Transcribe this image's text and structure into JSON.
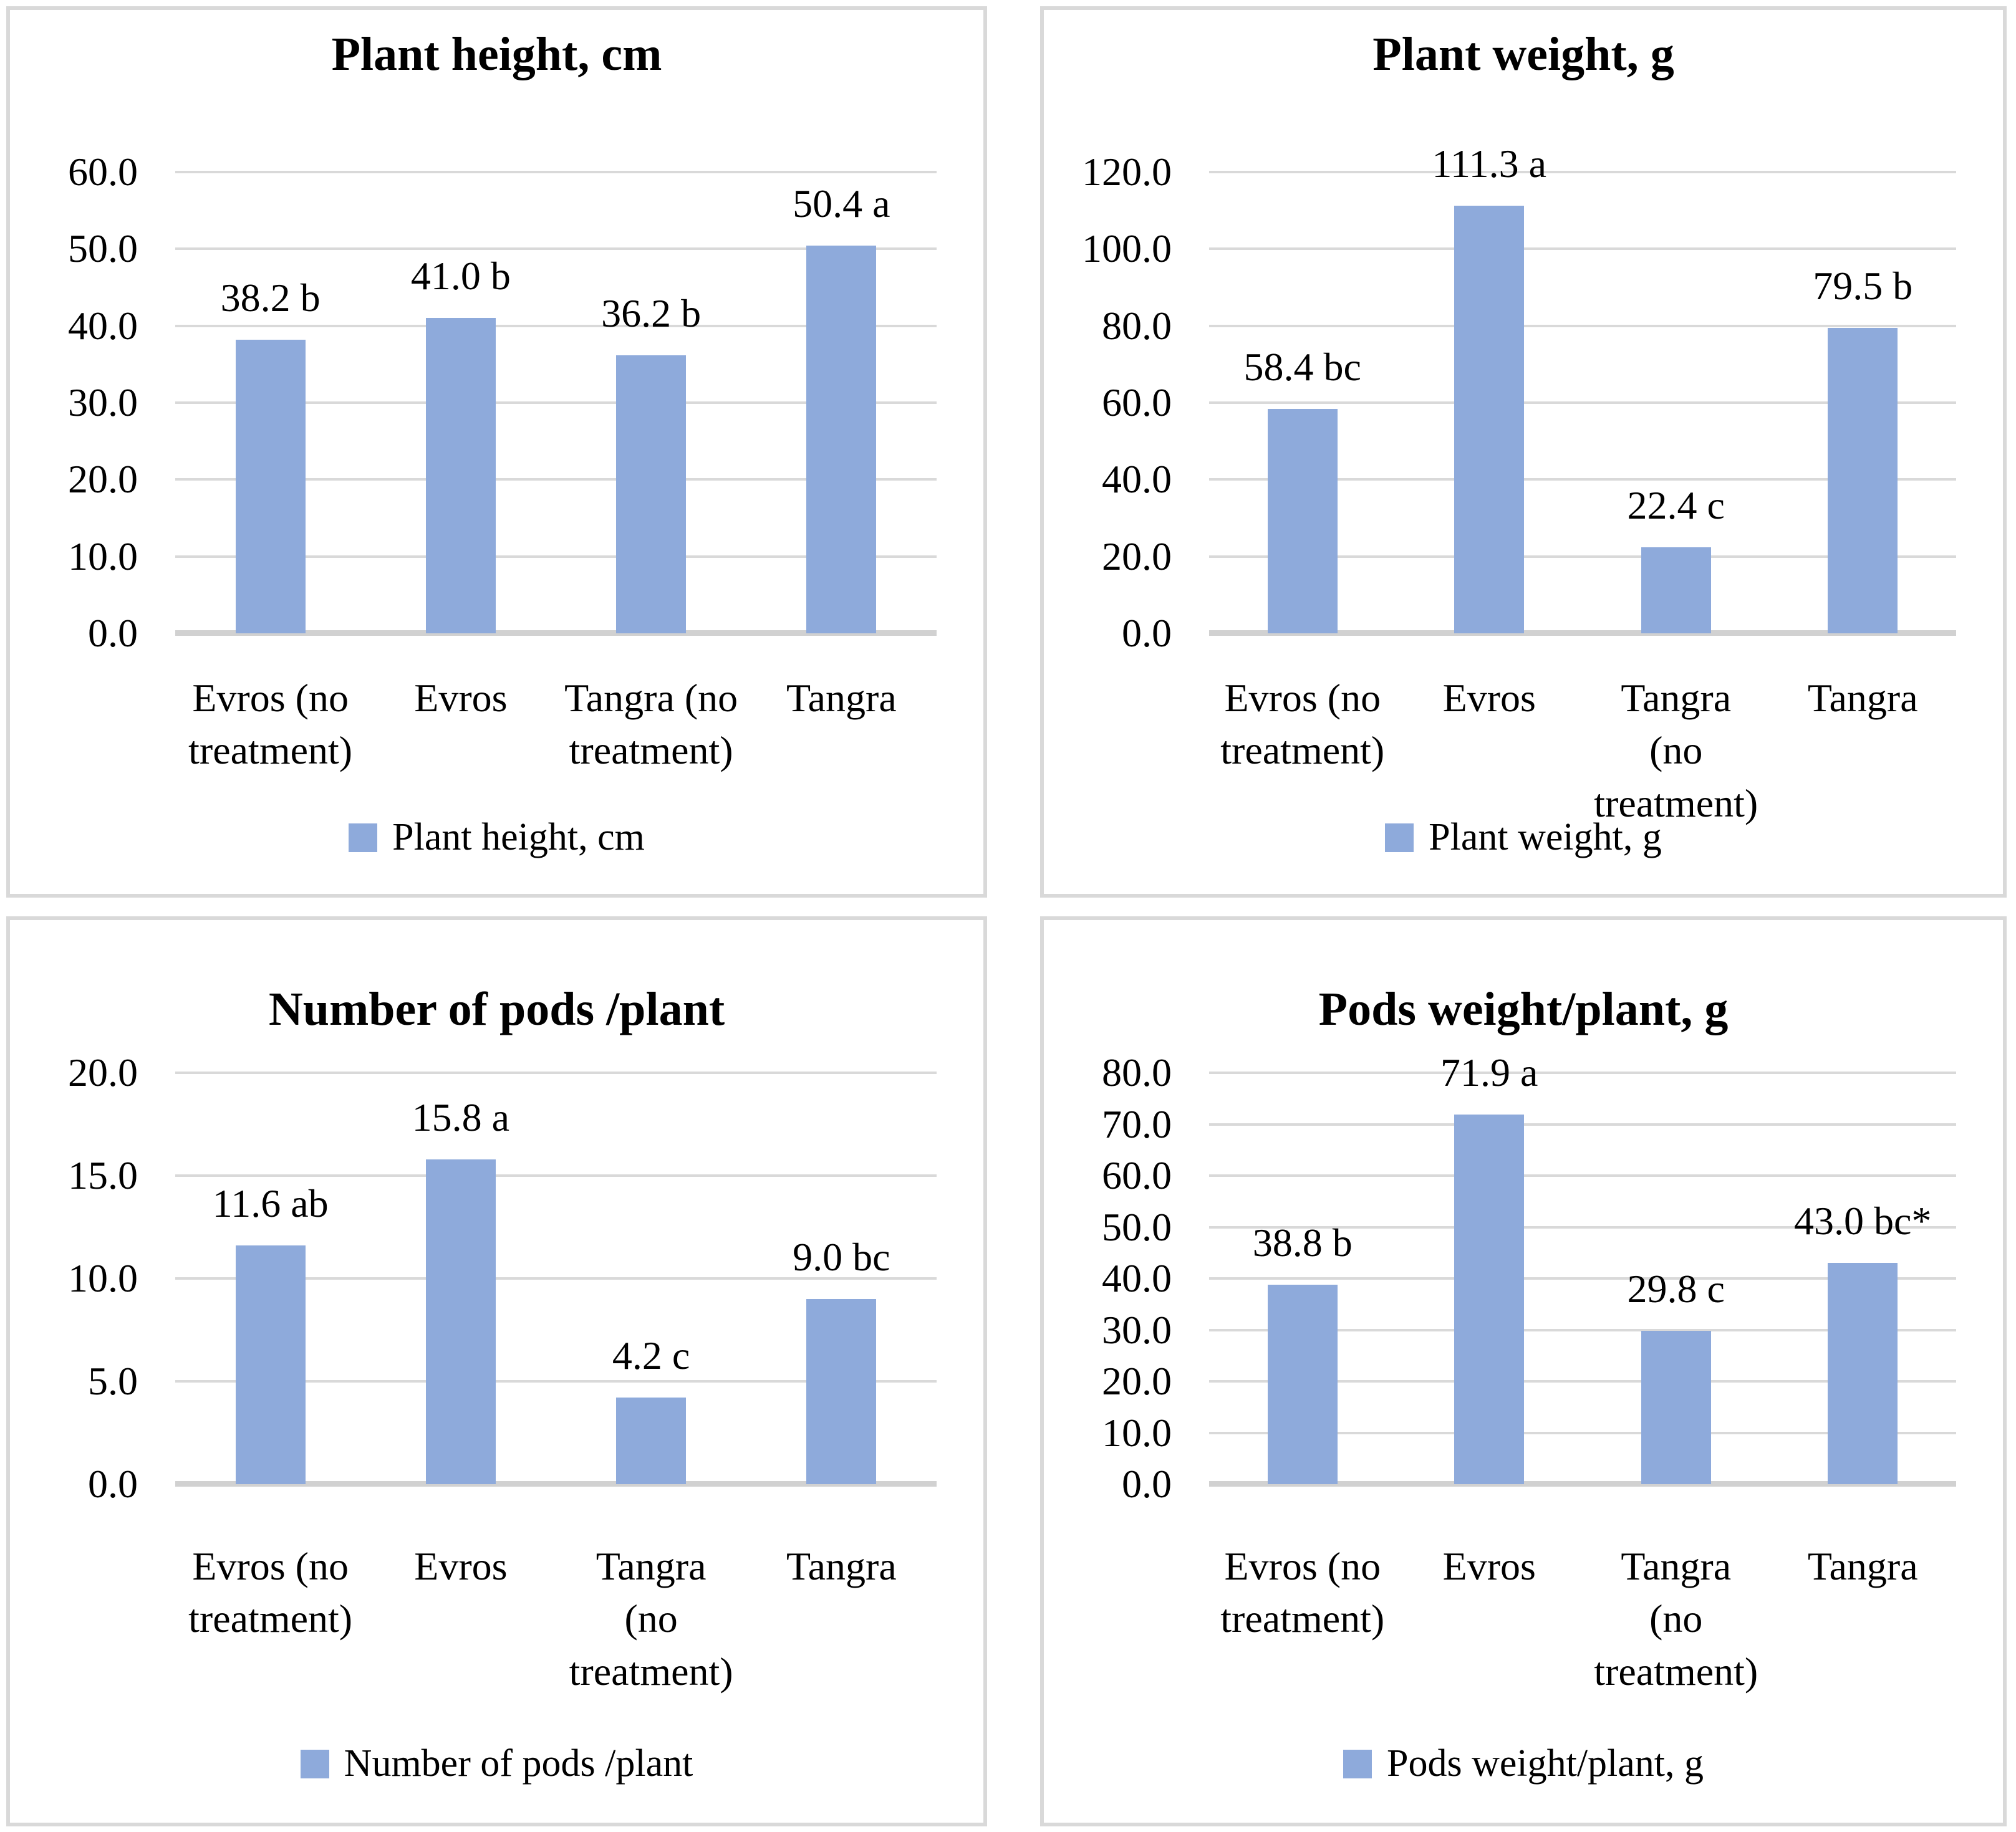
{
  "page": {
    "background": "#FFFFFF",
    "panel_border_color": "#D9D9D9"
  },
  "colors": {
    "bar": "#8EAADB",
    "gridline": "#D9D9D9",
    "axis_line": "#D1D1D1",
    "text": "#000000"
  },
  "chart_data": [
    {
      "id": "plant-height",
      "type": "bar",
      "title": "Plant height, cm",
      "legend": "Plant height, cm",
      "legend_position": "bottom",
      "grid": true,
      "categories": [
        "Evros (no treatment)",
        "Evros",
        "Tangra (no treatment)",
        "Tangra"
      ],
      "category_lines": [
        [
          "Evros (no",
          "treatment)"
        ],
        [
          "Evros"
        ],
        [
          "Tangra (no",
          "treatment)"
        ],
        [
          "Tangra"
        ]
      ],
      "values": [
        38.2,
        41.0,
        36.2,
        50.4
      ],
      "value_labels": [
        "38.2 b",
        "41.0 b",
        "36.2 b",
        "50.4 a"
      ],
      "ylim": [
        0,
        60
      ],
      "ystep": 10,
      "yticks": [
        "60.0",
        "50.0",
        "40.0",
        "30.0",
        "20.0",
        "10.0",
        "0.0"
      ],
      "bar_color": "#8EAADB"
    },
    {
      "id": "plant-weight",
      "type": "bar",
      "title": "Plant weight, g",
      "legend": "Plant weight, g",
      "legend_position": "bottom",
      "grid": true,
      "categories": [
        "Evros (no treatment)",
        "Evros",
        "Tangra (no treatment)",
        "Tangra"
      ],
      "category_lines": [
        [
          "Evros (no",
          "treatment)"
        ],
        [
          "Evros"
        ],
        [
          "Tangra",
          "(no",
          "treatment)"
        ],
        [
          "Tangra"
        ]
      ],
      "values": [
        58.4,
        111.3,
        22.4,
        79.5
      ],
      "value_labels": [
        "58.4 bc",
        "111.3 a",
        "22.4 c",
        "79.5 b"
      ],
      "ylim": [
        0,
        120
      ],
      "ystep": 20,
      "yticks": [
        "120.0",
        "100.0",
        "80.0",
        "60.0",
        "40.0",
        "20.0",
        "0.0"
      ],
      "bar_color": "#8EAADB"
    },
    {
      "id": "pods-number",
      "type": "bar",
      "title": "Number of pods /plant",
      "legend": "Number of pods /plant",
      "legend_position": "bottom",
      "grid": true,
      "categories": [
        "Evros (no treatment)",
        "Evros",
        "Tangra (no treatment)",
        "Tangra"
      ],
      "category_lines": [
        [
          "Evros (no",
          "treatment)"
        ],
        [
          "Evros"
        ],
        [
          "Tangra",
          "(no",
          "treatment)"
        ],
        [
          "Tangra"
        ]
      ],
      "values": [
        11.6,
        15.8,
        4.2,
        9.0
      ],
      "value_labels": [
        "11.6 ab",
        "15.8 a",
        "4.2 c",
        "9.0 bc"
      ],
      "ylim": [
        0,
        20
      ],
      "ystep": 5,
      "yticks": [
        "20.0",
        "15.0",
        "10.0",
        "5.0",
        "0.0"
      ],
      "bar_color": "#8EAADB"
    },
    {
      "id": "pods-weight",
      "type": "bar",
      "title": "Pods weight/plant, g",
      "legend": "Pods weight/plant, g",
      "legend_position": "bottom",
      "grid": true,
      "categories": [
        "Evros (no treatment)",
        "Evros",
        "Tangra (no treatment)",
        "Tangra"
      ],
      "category_lines": [
        [
          "Evros (no",
          "treatment)"
        ],
        [
          "Evros"
        ],
        [
          "Tangra",
          "(no",
          "treatment)"
        ],
        [
          "Tangra"
        ]
      ],
      "values": [
        38.8,
        71.9,
        29.8,
        43.0
      ],
      "value_labels": [
        "38.8 b",
        "71.9 a",
        "29.8 c",
        "43.0 bc*"
      ],
      "ylim": [
        0,
        80
      ],
      "ystep": 10,
      "yticks": [
        "80.0",
        "70.0",
        "60.0",
        "50.0",
        "40.0",
        "30.0",
        "20.0",
        "10.0",
        "0.0"
      ],
      "bar_color": "#8EAADB"
    }
  ]
}
